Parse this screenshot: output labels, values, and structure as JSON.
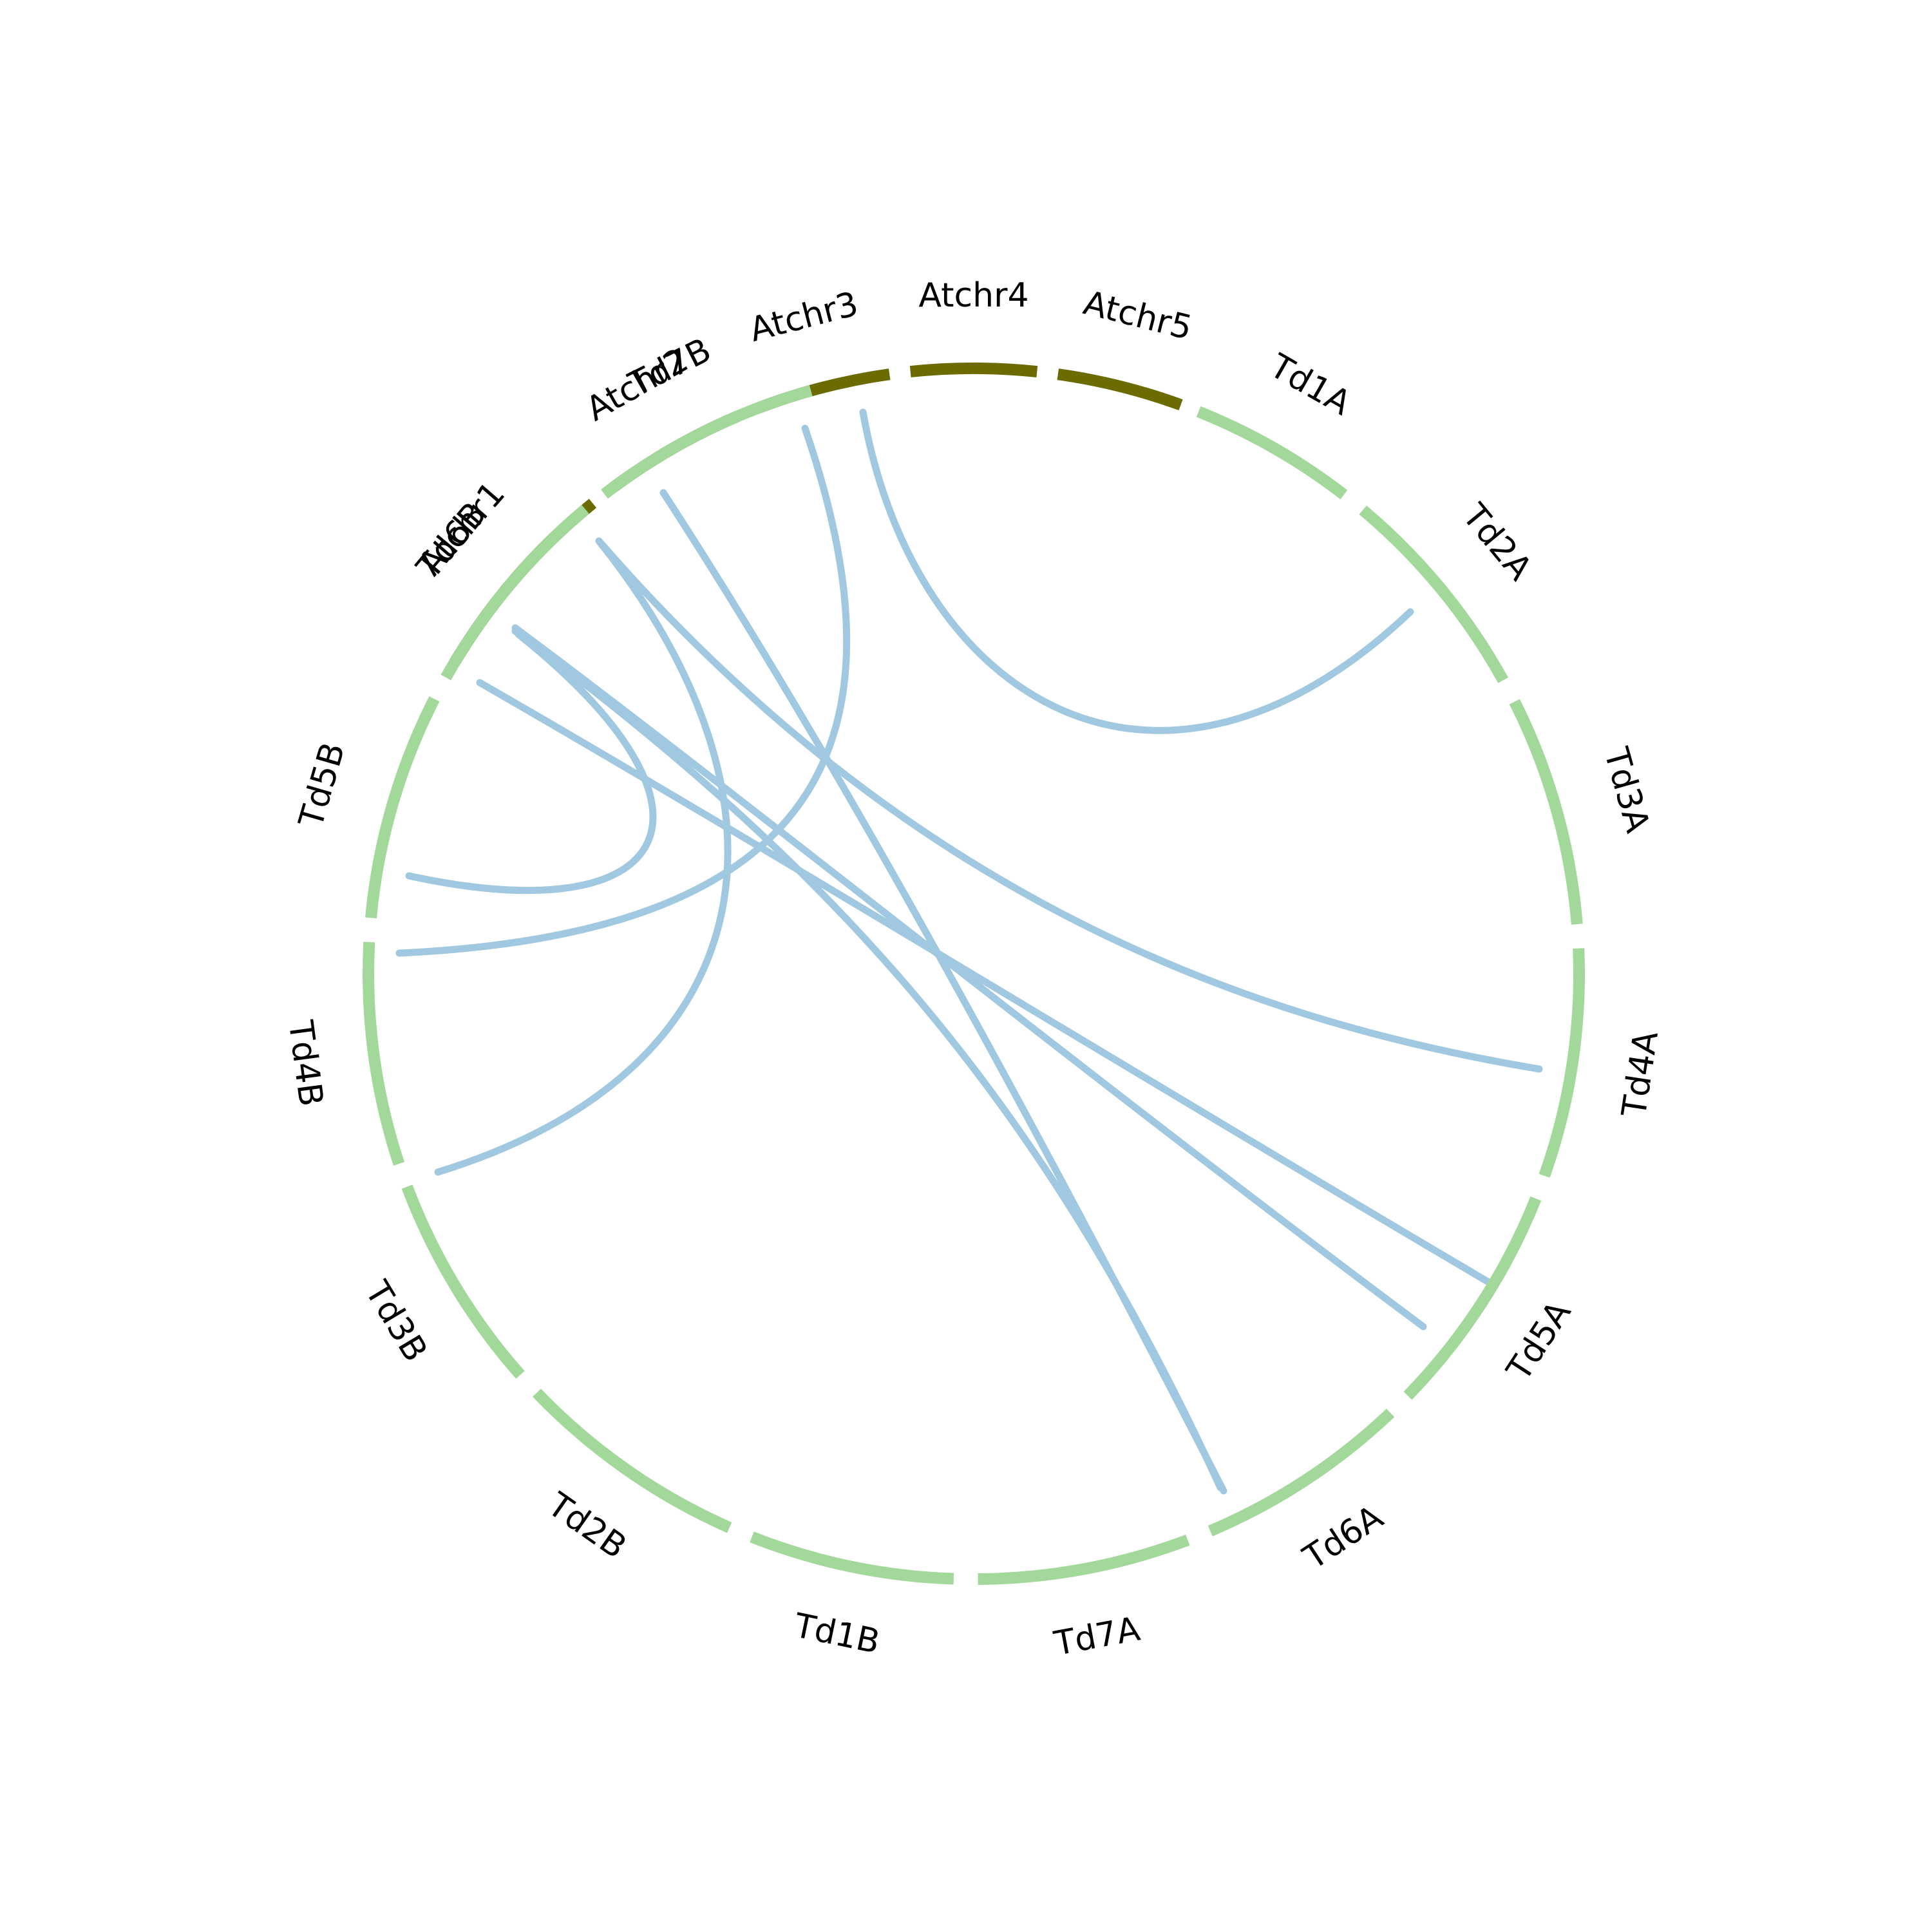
{
  "colors": {
    "arabidopsis": "#6b6b00",
    "wheat": "#a3d89b",
    "link": "#a0c8e0",
    "label": "#000000"
  },
  "chart_data": {
    "type": "chord",
    "segments": [
      {
        "name": "Atchr1",
        "group": "arabidopsis",
        "start": 211.0,
        "end": 231.0
      },
      {
        "name": "Atchr2",
        "group": "arabidopsis",
        "start": 233.5,
        "end": 247.0
      },
      {
        "name": "Atchr3",
        "group": "arabidopsis",
        "start": 249.0,
        "end": 262.0
      },
      {
        "name": "Atchr4",
        "group": "arabidopsis",
        "start": 264.0,
        "end": 276.0
      },
      {
        "name": "Atchr5",
        "group": "arabidopsis",
        "start": 278.0,
        "end": 290.0
      },
      {
        "name": "Td1A",
        "group": "wheat",
        "start": 291.8,
        "end": 307.7
      },
      {
        "name": "Td2A",
        "group": "wheat",
        "start": 310.0,
        "end": 331.0
      },
      {
        "name": "Td3A",
        "group": "wheat",
        "start": 333.3,
        "end": 355.3
      },
      {
        "name": "Td4A",
        "group": "wheat",
        "start": 357.6,
        "end": 19.5
      },
      {
        "name": "Td5A",
        "group": "wheat",
        "start": 21.8,
        "end": 44.2
      },
      {
        "name": "Td6A",
        "group": "wheat",
        "start": 46.5,
        "end": 67.0
      },
      {
        "name": "Td7A",
        "group": "wheat",
        "start": 69.3,
        "end": 89.6
      },
      {
        "name": "Td1B",
        "group": "wheat",
        "start": 91.9,
        "end": 111.5
      },
      {
        "name": "Td2B",
        "group": "wheat",
        "start": 113.8,
        "end": 136.2
      },
      {
        "name": "Td3B",
        "group": "wheat",
        "start": 138.5,
        "end": 159.4
      },
      {
        "name": "Td4B",
        "group": "wheat",
        "start": 161.7,
        "end": 183.0
      },
      {
        "name": "Td5B",
        "group": "wheat",
        "start": 185.3,
        "end": 207.0
      },
      {
        "name": "Td6B",
        "group": "wheat",
        "start": 209.3,
        "end": 230.1
      },
      {
        "name": "Td7B",
        "group": "wheat",
        "start": 232.4,
        "end": 254.4
      }
    ],
    "links": [
      {
        "from": "Atchr5",
        "to": "Td3A"
      },
      {
        "from": "Atchr4",
        "to": "Td6B"
      },
      {
        "from": "Atchr3",
        "to": "Td1B"
      },
      {
        "from": "Atchr2",
        "to": "Td5A"
      },
      {
        "from": "Atchr2",
        "to": "Td5B"
      },
      {
        "from": "Atchr1",
        "to": "Td7A"
      },
      {
        "from": "Atchr1",
        "to": "Td1B"
      },
      {
        "from": "Atchr1",
        "to": "Td7B"
      },
      {
        "from": "Atchr1",
        "to": "Td6A"
      }
    ]
  }
}
